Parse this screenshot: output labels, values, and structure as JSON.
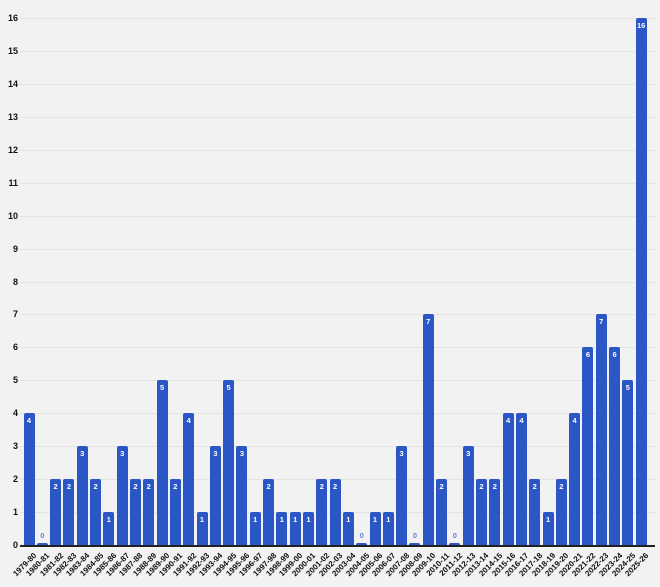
{
  "chart_data": {
    "type": "bar",
    "title": "",
    "xlabel": "",
    "ylabel": "",
    "categories": [
      "1979-80",
      "1980-81",
      "1981-82",
      "1982-83",
      "1983-84",
      "1984-85",
      "1985-86",
      "1986-87",
      "1987-88",
      "1988-89",
      "1989-90",
      "1990-91",
      "1991-92",
      "1992-93",
      "1993-94",
      "1994-95",
      "1995-96",
      "1996-97",
      "1997-98",
      "1998-99",
      "1999-00",
      "2000-01",
      "2001-02",
      "2002-03",
      "2003-04",
      "2004-05",
      "2005-06",
      "2006-07",
      "2007-08",
      "2008-09",
      "2009-10",
      "2010-11",
      "2011-12",
      "2012-13",
      "2013-14",
      "2014-15",
      "2015-16",
      "2016-17",
      "2017-18",
      "2018-19",
      "2019-20",
      "2020-21",
      "2021-22",
      "2022-23",
      "2023-24",
      "2024-25",
      "2025-26"
    ],
    "values": [
      4,
      0,
      2,
      2,
      3,
      2,
      1,
      3,
      2,
      2,
      5,
      2,
      4,
      1,
      3,
      5,
      3,
      1,
      2,
      1,
      1,
      1,
      2,
      2,
      1,
      0,
      1,
      1,
      3,
      0,
      7,
      2,
      0,
      3,
      2,
      2,
      4,
      4,
      2,
      1,
      2,
      4,
      6,
      7,
      6,
      5,
      16
    ],
    "ylim": [
      0,
      16
    ],
    "yticks": [
      0,
      1,
      2,
      3,
      4,
      5,
      6,
      7,
      8,
      9,
      10,
      11,
      12,
      13,
      14,
      15,
      16
    ],
    "grid": true,
    "legend_position": "none",
    "colors": {
      "background": "#f2f2f2",
      "bar": "#2b56c5",
      "bar_value_label": "#ffffff",
      "zero_value_label": "#6186d8",
      "gridline": "#e3e3e3",
      "axis_line": "#212121",
      "tick_label": "#111111"
    }
  }
}
